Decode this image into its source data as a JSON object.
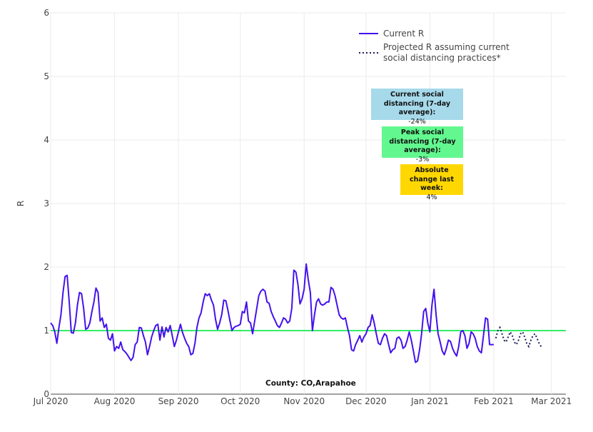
{
  "chart_data": {
    "type": "line",
    "ylabel": "R",
    "ylim": [
      0,
      6
    ],
    "yticks": [
      0,
      1,
      2,
      3,
      4,
      5,
      6
    ],
    "xlim": [
      "2020-07-01",
      "2021-03-08"
    ],
    "xticks": [
      {
        "date": "2020-07-01",
        "label": "Jul 2020"
      },
      {
        "date": "2020-08-01",
        "label": "Aug 2020"
      },
      {
        "date": "2020-09-01",
        "label": "Sep 2020"
      },
      {
        "date": "2020-10-01",
        "label": "Oct 2020"
      },
      {
        "date": "2020-11-01",
        "label": "Nov 2020"
      },
      {
        "date": "2020-12-01",
        "label": "Dec 2020"
      },
      {
        "date": "2021-01-01",
        "label": "Jan 2021"
      },
      {
        "date": "2021-02-01",
        "label": "Feb 2021"
      },
      {
        "date": "2021-03-01",
        "label": "Mar 2021"
      }
    ],
    "grid": true,
    "legend_position": "top-right",
    "reference_line": {
      "y": 1,
      "color": "#33ee66"
    },
    "series": [
      {
        "name": "Current R",
        "style": "solid",
        "color": "#4411ee",
        "points": [
          [
            "2020-07-01",
            1.12
          ],
          [
            "2020-07-02",
            1.08
          ],
          [
            "2020-07-03",
            0.98
          ],
          [
            "2020-07-04",
            0.8
          ],
          [
            "2020-07-05",
            1.05
          ],
          [
            "2020-07-06",
            1.25
          ],
          [
            "2020-07-07",
            1.6
          ],
          [
            "2020-07-08",
            1.85
          ],
          [
            "2020-07-09",
            1.87
          ],
          [
            "2020-07-10",
            1.45
          ],
          [
            "2020-07-11",
            0.97
          ],
          [
            "2020-07-12",
            0.96
          ],
          [
            "2020-07-13",
            1.12
          ],
          [
            "2020-07-14",
            1.4
          ],
          [
            "2020-07-15",
            1.6
          ],
          [
            "2020-07-16",
            1.58
          ],
          [
            "2020-07-17",
            1.35
          ],
          [
            "2020-07-18",
            1.02
          ],
          [
            "2020-07-19",
            1.04
          ],
          [
            "2020-07-20",
            1.12
          ],
          [
            "2020-07-21",
            1.3
          ],
          [
            "2020-07-22",
            1.45
          ],
          [
            "2020-07-23",
            1.67
          ],
          [
            "2020-07-24",
            1.6
          ],
          [
            "2020-07-25",
            1.15
          ],
          [
            "2020-07-26",
            1.2
          ],
          [
            "2020-07-27",
            1.05
          ],
          [
            "2020-07-28",
            1.1
          ],
          [
            "2020-07-29",
            0.88
          ],
          [
            "2020-07-30",
            0.85
          ],
          [
            "2020-07-31",
            0.95
          ],
          [
            "2020-08-01",
            0.68
          ],
          [
            "2020-08-02",
            0.75
          ],
          [
            "2020-08-03",
            0.72
          ],
          [
            "2020-08-04",
            0.82
          ],
          [
            "2020-08-05",
            0.7
          ],
          [
            "2020-08-06",
            0.67
          ],
          [
            "2020-08-07",
            0.63
          ],
          [
            "2020-08-08",
            0.58
          ],
          [
            "2020-08-09",
            0.53
          ],
          [
            "2020-08-10",
            0.58
          ],
          [
            "2020-08-11",
            0.78
          ],
          [
            "2020-08-12",
            0.82
          ],
          [
            "2020-08-13",
            1.05
          ],
          [
            "2020-08-14",
            1.04
          ],
          [
            "2020-08-15",
            0.92
          ],
          [
            "2020-08-16",
            0.82
          ],
          [
            "2020-08-17",
            0.62
          ],
          [
            "2020-08-18",
            0.75
          ],
          [
            "2020-08-19",
            0.9
          ],
          [
            "2020-08-20",
            1.0
          ],
          [
            "2020-08-21",
            1.08
          ],
          [
            "2020-08-22",
            1.1
          ],
          [
            "2020-08-23",
            0.85
          ],
          [
            "2020-08-24",
            1.06
          ],
          [
            "2020-08-25",
            0.9
          ],
          [
            "2020-08-26",
            1.05
          ],
          [
            "2020-08-27",
            0.98
          ],
          [
            "2020-08-28",
            1.08
          ],
          [
            "2020-08-29",
            0.92
          ],
          [
            "2020-08-30",
            0.75
          ],
          [
            "2020-08-31",
            0.85
          ],
          [
            "2020-09-01",
            0.98
          ],
          [
            "2020-09-02",
            1.1
          ],
          [
            "2020-09-03",
            0.97
          ],
          [
            "2020-09-04",
            0.88
          ],
          [
            "2020-09-05",
            0.8
          ],
          [
            "2020-09-06",
            0.75
          ],
          [
            "2020-09-07",
            0.62
          ],
          [
            "2020-09-08",
            0.64
          ],
          [
            "2020-09-09",
            0.8
          ],
          [
            "2020-09-10",
            1.05
          ],
          [
            "2020-09-11",
            1.2
          ],
          [
            "2020-09-12",
            1.28
          ],
          [
            "2020-09-13",
            1.45
          ],
          [
            "2020-09-14",
            1.58
          ],
          [
            "2020-09-15",
            1.55
          ],
          [
            "2020-09-16",
            1.58
          ],
          [
            "2020-09-17",
            1.48
          ],
          [
            "2020-09-18",
            1.4
          ],
          [
            "2020-09-19",
            1.18
          ],
          [
            "2020-09-20",
            1.02
          ],
          [
            "2020-09-21",
            1.12
          ],
          [
            "2020-09-22",
            1.25
          ],
          [
            "2020-09-23",
            1.48
          ],
          [
            "2020-09-24",
            1.47
          ],
          [
            "2020-09-25",
            1.32
          ],
          [
            "2020-09-26",
            1.15
          ],
          [
            "2020-09-27",
            1.0
          ],
          [
            "2020-09-28",
            1.05
          ],
          [
            "2020-09-29",
            1.07
          ],
          [
            "2020-09-30",
            1.08
          ],
          [
            "2020-10-01",
            1.1
          ],
          [
            "2020-10-02",
            1.3
          ],
          [
            "2020-10-03",
            1.28
          ],
          [
            "2020-10-04",
            1.45
          ],
          [
            "2020-10-05",
            1.15
          ],
          [
            "2020-10-06",
            1.12
          ],
          [
            "2020-10-07",
            0.95
          ],
          [
            "2020-10-08",
            1.15
          ],
          [
            "2020-10-09",
            1.35
          ],
          [
            "2020-10-10",
            1.55
          ],
          [
            "2020-10-11",
            1.62
          ],
          [
            "2020-10-12",
            1.65
          ],
          [
            "2020-10-13",
            1.62
          ],
          [
            "2020-10-14",
            1.45
          ],
          [
            "2020-10-15",
            1.43
          ],
          [
            "2020-10-16",
            1.3
          ],
          [
            "2020-10-17",
            1.22
          ],
          [
            "2020-10-18",
            1.15
          ],
          [
            "2020-10-19",
            1.08
          ],
          [
            "2020-10-20",
            1.05
          ],
          [
            "2020-10-21",
            1.12
          ],
          [
            "2020-10-22",
            1.2
          ],
          [
            "2020-10-23",
            1.18
          ],
          [
            "2020-10-24",
            1.12
          ],
          [
            "2020-10-25",
            1.15
          ],
          [
            "2020-10-26",
            1.35
          ],
          [
            "2020-10-27",
            1.95
          ],
          [
            "2020-10-28",
            1.92
          ],
          [
            "2020-10-29",
            1.72
          ],
          [
            "2020-10-30",
            1.42
          ],
          [
            "2020-10-31",
            1.5
          ],
          [
            "2020-11-01",
            1.65
          ],
          [
            "2020-11-02",
            2.05
          ],
          [
            "2020-11-03",
            1.8
          ],
          [
            "2020-11-04",
            1.6
          ],
          [
            "2020-11-05",
            1.0
          ],
          [
            "2020-11-06",
            1.25
          ],
          [
            "2020-11-07",
            1.45
          ],
          [
            "2020-11-08",
            1.5
          ],
          [
            "2020-11-09",
            1.42
          ],
          [
            "2020-11-10",
            1.4
          ],
          [
            "2020-11-11",
            1.42
          ],
          [
            "2020-11-12",
            1.45
          ],
          [
            "2020-11-13",
            1.45
          ],
          [
            "2020-11-14",
            1.68
          ],
          [
            "2020-11-15",
            1.65
          ],
          [
            "2020-11-16",
            1.55
          ],
          [
            "2020-11-17",
            1.4
          ],
          [
            "2020-11-18",
            1.25
          ],
          [
            "2020-11-19",
            1.2
          ],
          [
            "2020-11-20",
            1.18
          ],
          [
            "2020-11-21",
            1.2
          ],
          [
            "2020-11-22",
            1.05
          ],
          [
            "2020-11-23",
            0.92
          ],
          [
            "2020-11-24",
            0.7
          ],
          [
            "2020-11-25",
            0.68
          ],
          [
            "2020-11-26",
            0.78
          ],
          [
            "2020-11-27",
            0.85
          ],
          [
            "2020-11-28",
            0.92
          ],
          [
            "2020-11-29",
            0.82
          ],
          [
            "2020-11-30",
            0.9
          ],
          [
            "2020-12-01",
            0.95
          ],
          [
            "2020-12-02",
            1.05
          ],
          [
            "2020-12-03",
            1.08
          ],
          [
            "2020-12-04",
            1.25
          ],
          [
            "2020-12-05",
            1.12
          ],
          [
            "2020-12-06",
            0.95
          ],
          [
            "2020-12-07",
            0.8
          ],
          [
            "2020-12-08",
            0.78
          ],
          [
            "2020-12-09",
            0.88
          ],
          [
            "2020-12-10",
            0.95
          ],
          [
            "2020-12-11",
            0.92
          ],
          [
            "2020-12-12",
            0.78
          ],
          [
            "2020-12-13",
            0.65
          ],
          [
            "2020-12-14",
            0.7
          ],
          [
            "2020-12-15",
            0.72
          ],
          [
            "2020-12-16",
            0.88
          ],
          [
            "2020-12-17",
            0.9
          ],
          [
            "2020-12-18",
            0.85
          ],
          [
            "2020-12-19",
            0.72
          ],
          [
            "2020-12-20",
            0.75
          ],
          [
            "2020-12-21",
            0.85
          ],
          [
            "2020-12-22",
            0.98
          ],
          [
            "2020-12-23",
            0.85
          ],
          [
            "2020-12-24",
            0.68
          ],
          [
            "2020-12-25",
            0.5
          ],
          [
            "2020-12-26",
            0.52
          ],
          [
            "2020-12-27",
            0.7
          ],
          [
            "2020-12-28",
            0.95
          ],
          [
            "2020-12-29",
            1.3
          ],
          [
            "2020-12-30",
            1.35
          ],
          [
            "2020-12-31",
            1.12
          ],
          [
            "2021-01-01",
            0.98
          ],
          [
            "2021-01-02",
            1.4
          ],
          [
            "2021-01-03",
            1.65
          ],
          [
            "2021-01-04",
            1.25
          ],
          [
            "2021-01-05",
            0.95
          ],
          [
            "2021-01-06",
            0.82
          ],
          [
            "2021-01-07",
            0.68
          ],
          [
            "2021-01-08",
            0.62
          ],
          [
            "2021-01-09",
            0.72
          ],
          [
            "2021-01-10",
            0.85
          ],
          [
            "2021-01-11",
            0.83
          ],
          [
            "2021-01-12",
            0.72
          ],
          [
            "2021-01-13",
            0.65
          ],
          [
            "2021-01-14",
            0.6
          ],
          [
            "2021-01-15",
            0.75
          ],
          [
            "2021-01-16",
            0.98
          ],
          [
            "2021-01-17",
            1.0
          ],
          [
            "2021-01-18",
            0.92
          ],
          [
            "2021-01-19",
            0.72
          ],
          [
            "2021-01-20",
            0.8
          ],
          [
            "2021-01-21",
            0.98
          ],
          [
            "2021-01-22",
            0.95
          ],
          [
            "2021-01-23",
            0.88
          ],
          [
            "2021-01-24",
            0.75
          ],
          [
            "2021-01-25",
            0.68
          ],
          [
            "2021-01-26",
            0.65
          ],
          [
            "2021-01-27",
            0.92
          ],
          [
            "2021-01-28",
            1.2
          ],
          [
            "2021-01-29",
            1.18
          ],
          [
            "2021-01-30",
            0.78
          ],
          [
            "2021-01-31",
            0.78
          ],
          [
            "2021-02-01",
            0.78
          ]
        ]
      },
      {
        "name": "Projected R assuming current social distancing practices*",
        "style": "dotted",
        "color": "#1a1a5a",
        "points": [
          [
            "2021-02-02",
            0.88
          ],
          [
            "2021-02-03",
            1.0
          ],
          [
            "2021-02-04",
            1.05
          ],
          [
            "2021-02-05",
            0.95
          ],
          [
            "2021-02-06",
            0.85
          ],
          [
            "2021-02-07",
            0.82
          ],
          [
            "2021-02-08",
            0.9
          ],
          [
            "2021-02-09",
            0.98
          ],
          [
            "2021-02-10",
            0.92
          ],
          [
            "2021-02-11",
            0.82
          ],
          [
            "2021-02-12",
            0.78
          ],
          [
            "2021-02-13",
            0.85
          ],
          [
            "2021-02-14",
            0.95
          ],
          [
            "2021-02-15",
            0.98
          ],
          [
            "2021-02-16",
            0.9
          ],
          [
            "2021-02-17",
            0.8
          ],
          [
            "2021-02-18",
            0.75
          ],
          [
            "2021-02-19",
            0.85
          ],
          [
            "2021-02-20",
            0.92
          ],
          [
            "2021-02-21",
            0.95
          ],
          [
            "2021-02-22",
            0.88
          ],
          [
            "2021-02-23",
            0.8
          ],
          [
            "2021-02-24",
            0.75
          ]
        ]
      }
    ],
    "annotations": [
      {
        "key": "current",
        "title": "Current social distancing (7-day average):",
        "value": "-24%",
        "color": "#a6d9ea"
      },
      {
        "key": "peak",
        "title": "Peak social distancing (7-day average):",
        "value": "-3%",
        "color": "#62f88f"
      },
      {
        "key": "change",
        "title": "Absolute change last week:",
        "value": "4%",
        "color": "#ffd700"
      }
    ],
    "footnote": "County: CO,Arapahoe"
  }
}
